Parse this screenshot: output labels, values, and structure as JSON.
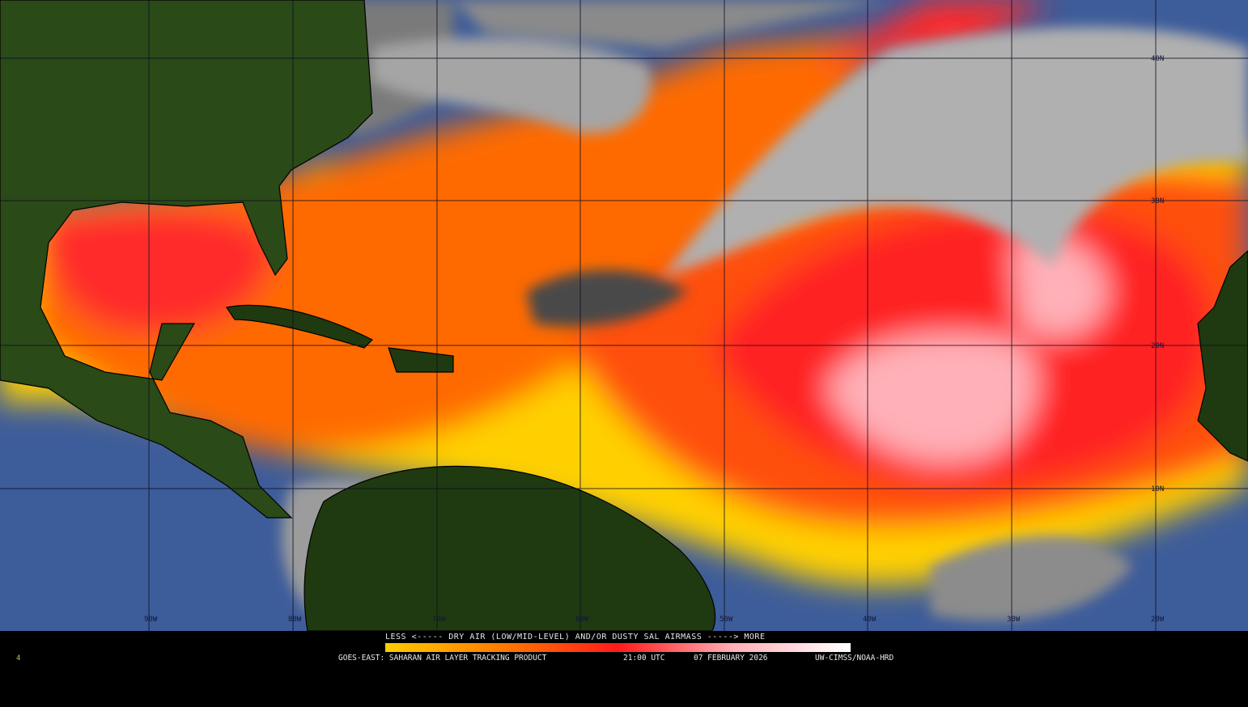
{
  "map": {
    "longitude_labels": [
      "90W",
      "80W",
      "70W",
      "60W",
      "50W",
      "40W",
      "30W",
      "20W"
    ],
    "latitude_labels": [
      "40N",
      "30N",
      "20N",
      "10N"
    ],
    "colors": {
      "ocean": "#3d5c9a",
      "land": "#1f3a10",
      "cloud": "#9a9a9a",
      "dry_low": "#ffd000",
      "dry_mid": "#ff6a00",
      "dry_high": "#ff2020",
      "dry_max": "#ffc0c8"
    }
  },
  "legend": {
    "title": "LESS <----- DRY AIR (LOW/MID-LEVEL) AND/OR DUSTY SAL AIRMASS -----> MORE",
    "gradient": [
      "#ffcc00",
      "#ff7a00",
      "#ff1a1a",
      "#ffb0b8",
      "#ffffff"
    ]
  },
  "footer": {
    "product": "GOES-EAST: SAHARAN AIR LAYER TRACKING PRODUCT",
    "time": "21:00 UTC",
    "date": "07 FEBRUARY 2026",
    "credit": "UW-CIMSS/NOAA-HRD",
    "frame": "4"
  }
}
